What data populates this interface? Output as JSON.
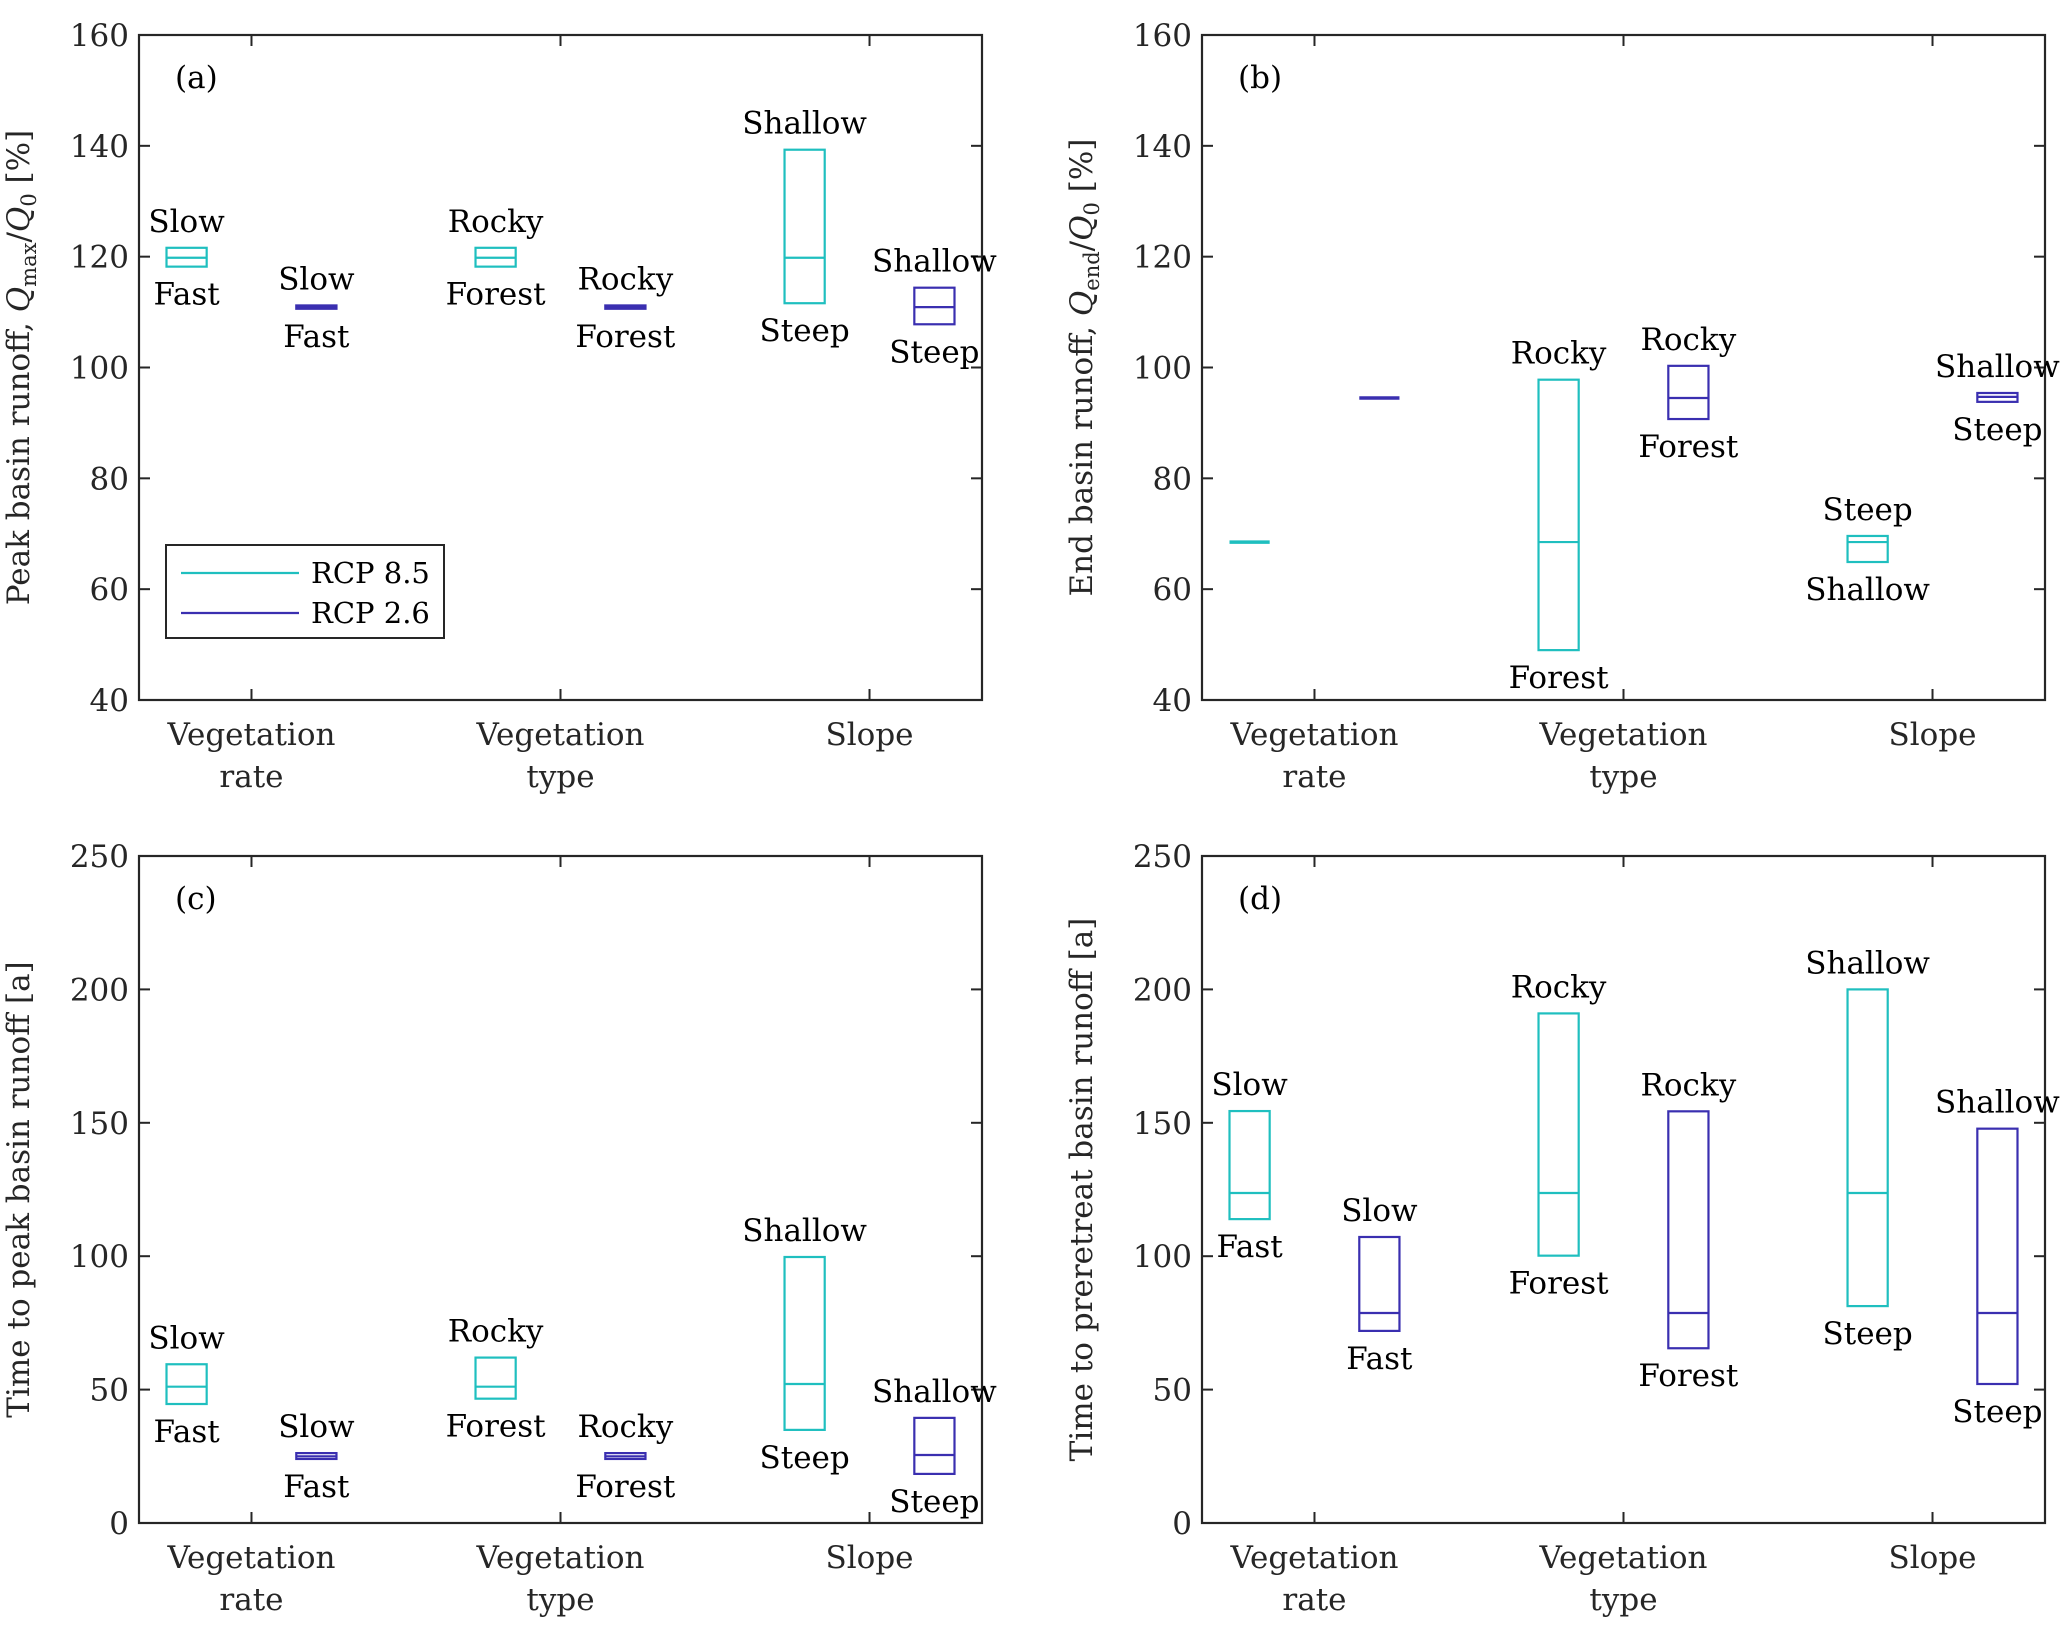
{
  "colors": {
    "rcp85": "#1fbfbf",
    "rcp26": "#3a2fb0",
    "axis": "#262626"
  },
  "legend": [
    {
      "key": "rcp85",
      "label": "RCP 8.5"
    },
    {
      "key": "rcp26",
      "label": "RCP 2.6"
    }
  ],
  "chart_data": [
    {
      "type": "box",
      "panel": "(a)",
      "ylabel": "Peak basin runoff, Q_max/Q_0 [%]",
      "ylim": [
        40,
        160
      ],
      "yticks": [
        40,
        60,
        80,
        100,
        120,
        140,
        160
      ],
      "categories": [
        [
          "Vegetation",
          "rate"
        ],
        [
          "Vegetation",
          "type"
        ],
        [
          "Slope"
        ]
      ],
      "legend_position": "bottom-left",
      "boxes": [
        {
          "cat": 0,
          "series": "rcp85",
          "low": 118.2,
          "median": 119.8,
          "high": 121.6,
          "top_label": "Slow",
          "bottom_label": "Fast"
        },
        {
          "cat": 0,
          "series": "rcp26",
          "low": 110.6,
          "median": 110.9,
          "high": 111.2,
          "top_label": "Slow",
          "bottom_label": "Fast"
        },
        {
          "cat": 1,
          "series": "rcp85",
          "low": 118.2,
          "median": 119.8,
          "high": 121.6,
          "top_label": "Rocky",
          "bottom_label": "Forest"
        },
        {
          "cat": 1,
          "series": "rcp26",
          "low": 110.6,
          "median": 110.9,
          "high": 111.2,
          "top_label": "Rocky",
          "bottom_label": "Forest"
        },
        {
          "cat": 2,
          "series": "rcp85",
          "low": 111.6,
          "median": 119.8,
          "high": 139.3,
          "top_label": "Shallow",
          "bottom_label": "Steep"
        },
        {
          "cat": 2,
          "series": "rcp26",
          "low": 107.8,
          "median": 110.9,
          "high": 114.4,
          "top_label": "Shallow",
          "bottom_label": "Steep"
        }
      ]
    },
    {
      "type": "box",
      "panel": "(b)",
      "ylabel": "End basin runoff, Q_end/Q_0 [%]",
      "ylim": [
        40,
        160
      ],
      "yticks": [
        40,
        60,
        80,
        100,
        120,
        140,
        160
      ],
      "categories": [
        [
          "Vegetation",
          "rate"
        ],
        [
          "Vegetation",
          "type"
        ],
        [
          "Slope"
        ]
      ],
      "boxes": [
        {
          "cat": 0,
          "series": "rcp85",
          "low": 68.5,
          "median": 68.5,
          "high": 68.5,
          "top_label": "",
          "bottom_label": ""
        },
        {
          "cat": 0,
          "series": "rcp26",
          "low": 94.5,
          "median": 94.5,
          "high": 94.5,
          "top_label": "",
          "bottom_label": ""
        },
        {
          "cat": 1,
          "series": "rcp85",
          "low": 49.0,
          "median": 68.5,
          "high": 97.8,
          "top_label": "Rocky",
          "bottom_label": "Forest"
        },
        {
          "cat": 1,
          "series": "rcp26",
          "low": 90.7,
          "median": 94.5,
          "high": 100.3,
          "top_label": "Rocky",
          "bottom_label": "Forest"
        },
        {
          "cat": 2,
          "series": "rcp85",
          "low": 64.9,
          "median": 68.5,
          "high": 69.6,
          "top_label": "Steep",
          "bottom_label": "Shallow"
        },
        {
          "cat": 2,
          "series": "rcp26",
          "low": 93.8,
          "median": 94.7,
          "high": 95.4,
          "top_label": "Shallow",
          "bottom_label": "Steep"
        }
      ]
    },
    {
      "type": "box",
      "panel": "(c)",
      "ylabel": "Time to peak basin runoff [a]",
      "ylim": [
        0,
        250
      ],
      "yticks": [
        0,
        50,
        100,
        150,
        200,
        250
      ],
      "categories": [
        [
          "Vegetation",
          "rate"
        ],
        [
          "Vegetation",
          "type"
        ],
        [
          "Slope"
        ]
      ],
      "boxes": [
        {
          "cat": 0,
          "series": "rcp85",
          "low": 44.6,
          "median": 51.1,
          "high": 59.5,
          "top_label": "Slow",
          "bottom_label": "Fast"
        },
        {
          "cat": 0,
          "series": "rcp26",
          "low": 24.0,
          "median": 25.0,
          "high": 26.2,
          "top_label": "Slow",
          "bottom_label": "Fast"
        },
        {
          "cat": 1,
          "series": "rcp85",
          "low": 46.6,
          "median": 51.1,
          "high": 62.0,
          "top_label": "Rocky",
          "bottom_label": "Forest"
        },
        {
          "cat": 1,
          "series": "rcp26",
          "low": 24.0,
          "median": 25.0,
          "high": 26.2,
          "top_label": "Rocky",
          "bottom_label": "Forest"
        },
        {
          "cat": 2,
          "series": "rcp85",
          "low": 34.9,
          "median": 52.1,
          "high": 99.7,
          "top_label": "Shallow",
          "bottom_label": "Steep"
        },
        {
          "cat": 2,
          "series": "rcp26",
          "low": 18.4,
          "median": 25.5,
          "high": 39.4,
          "top_label": "Shallow",
          "bottom_label": "Steep"
        }
      ]
    },
    {
      "type": "box",
      "panel": "(d)",
      "ylabel": "Time to preretreat basin runoff [a]",
      "ylim": [
        0,
        250
      ],
      "yticks": [
        0,
        50,
        100,
        150,
        200,
        250
      ],
      "categories": [
        [
          "Vegetation",
          "rate"
        ],
        [
          "Vegetation",
          "type"
        ],
        [
          "Slope"
        ]
      ],
      "boxes": [
        {
          "cat": 0,
          "series": "rcp85",
          "low": 113.9,
          "median": 123.7,
          "high": 154.4,
          "top_label": "Slow",
          "bottom_label": "Fast"
        },
        {
          "cat": 0,
          "series": "rcp26",
          "low": 72.0,
          "median": 78.7,
          "high": 107.2,
          "top_label": "Slow",
          "bottom_label": "Fast"
        },
        {
          "cat": 1,
          "series": "rcp85",
          "low": 100.2,
          "median": 123.7,
          "high": 191.0,
          "top_label": "Rocky",
          "bottom_label": "Forest"
        },
        {
          "cat": 1,
          "series": "rcp26",
          "low": 65.5,
          "median": 78.7,
          "high": 154.3,
          "top_label": "Rocky",
          "bottom_label": "Forest"
        },
        {
          "cat": 2,
          "series": "rcp85",
          "low": 81.3,
          "median": 123.7,
          "high": 200.0,
          "top_label": "Shallow",
          "bottom_label": "Steep"
        },
        {
          "cat": 2,
          "series": "rcp26",
          "low": 52.1,
          "median": 78.7,
          "high": 147.8,
          "top_label": "Shallow",
          "bottom_label": "Steep"
        }
      ]
    }
  ]
}
